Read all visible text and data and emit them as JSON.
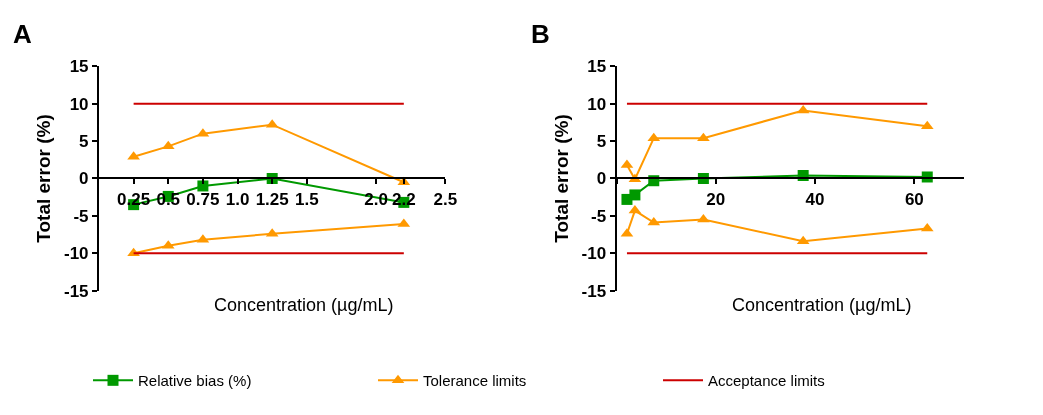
{
  "chart_data": [
    {
      "type": "line",
      "title": "A",
      "xlabel": "Concentration (µg/mL)",
      "ylabel": "Total error (%)",
      "xlim": [
        0,
        2.5
      ],
      "xticks": [
        0.25,
        0.5,
        0.75,
        {
          "value": 1,
          "label": "1.0"
        },
        1.25,
        1.5,
        {
          "value": 2,
          "label": "2.0"
        },
        2.2,
        2.5
      ],
      "ylim": [
        -15,
        15
      ],
      "yticks": [
        -15,
        -10,
        -5,
        0,
        5,
        10,
        15
      ],
      "legend": "bottom",
      "series": [
        {
          "name": "Relative bias (%)",
          "color": "#009900",
          "marker": "square",
          "x": [
            0.25,
            0.5,
            0.75,
            1.25,
            2.2
          ],
          "values": [
            -3.5,
            -2.4,
            -1.0,
            0.0,
            -3.2
          ]
        },
        {
          "name": "Tolerance limits",
          "color": "#ff9900",
          "marker": "triangle",
          "x": [
            0.25,
            0.5,
            0.75,
            1.25,
            2.2
          ],
          "values": [
            2.9,
            4.3,
            6.0,
            7.2,
            -0.5
          ]
        },
        {
          "color": "#ff9900",
          "marker": "triangle",
          "x": [
            0.25,
            0.5,
            0.75,
            1.25,
            2.2
          ],
          "values": [
            -10.0,
            -9.0,
            -8.2,
            -7.4,
            -6.1
          ]
        },
        {
          "name": "Acceptance limits",
          "color": "#cc0000",
          "marker": "none",
          "x": [
            0.25,
            2.2
          ],
          "values": [
            10,
            10
          ]
        },
        {
          "color": "#cc0000",
          "marker": "none",
          "x": [
            0.25,
            2.2
          ],
          "values": [
            -10,
            -10
          ]
        }
      ]
    },
    {
      "type": "line",
      "title": "B",
      "xlabel": "Concentration (µg/mL)",
      "ylabel": "Total error (%)",
      "xlim": [
        0,
        70
      ],
      "xticks": [
        {
          "value": 0,
          "label": null
        },
        20,
        40,
        60
      ],
      "ylim": [
        -15,
        15
      ],
      "yticks": [
        -15,
        -10,
        -5,
        0,
        5,
        10,
        15
      ],
      "series": [
        {
          "color": "#009900",
          "marker": "square",
          "x": [
            2.1,
            3.7,
            7.5,
            17.5,
            37.6,
            62.6
          ],
          "values": [
            -2.8,
            -2.2,
            -0.3,
            0.0,
            0.4,
            0.2
          ]
        },
        {
          "color": "#ff9900",
          "marker": "triangle",
          "x": [
            2.1,
            3.7,
            7.5,
            17.5,
            37.6,
            62.6
          ],
          "values": [
            1.8,
            -0.1,
            5.4,
            5.4,
            9.1,
            7.0
          ]
        },
        {
          "color": "#ff9900",
          "marker": "triangle",
          "x": [
            2.1,
            3.7,
            7.5,
            17.5,
            37.6,
            62.6
          ],
          "values": [
            -7.4,
            -4.3,
            -5.9,
            -5.5,
            -8.4,
            -6.7
          ]
        },
        {
          "color": "#cc0000",
          "marker": "none",
          "x": [
            2.1,
            62.6
          ],
          "values": [
            10,
            10
          ]
        },
        {
          "color": "#cc0000",
          "marker": "none",
          "x": [
            2.1,
            62.6
          ],
          "values": [
            -10,
            -10
          ]
        }
      ]
    }
  ]
}
